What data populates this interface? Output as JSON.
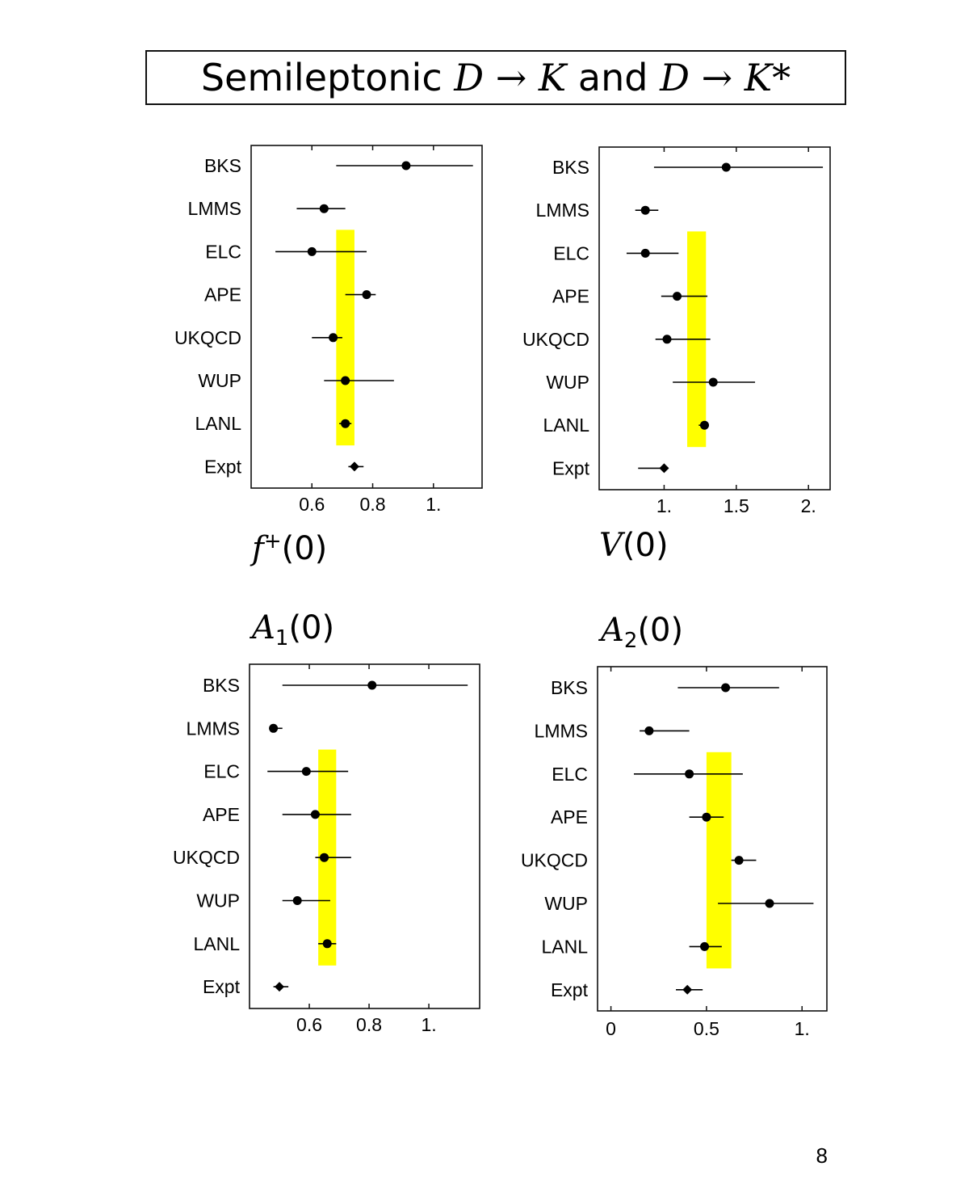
{
  "title": {
    "prefix": "Semileptonic",
    "process1": "D → K",
    "conj": "and",
    "process2": "D → K*"
  },
  "page_number": "8",
  "colors": {
    "band": "#ffff00",
    "point": "#000000",
    "frame": "#111111"
  },
  "chart_data": [
    {
      "type": "scatter",
      "panel": "f+(0)",
      "xlabel": "f+(0)",
      "xlim": [
        0.4,
        1.16
      ],
      "ticks": [
        0.6,
        0.8,
        1.0
      ],
      "tick_labels": [
        "0.6",
        "0.8",
        "1."
      ],
      "categories": [
        "BKS",
        "LMMS",
        "ELC",
        "APE",
        "UKQCD",
        "WUP",
        "LANL",
        "Expt"
      ],
      "values": [
        0.91,
        0.64,
        0.6,
        0.78,
        0.67,
        0.71,
        0.71,
        0.74
      ],
      "error_low": [
        0.68,
        0.55,
        0.48,
        0.71,
        0.6,
        0.64,
        0.69,
        0.72
      ],
      "error_high": [
        1.13,
        0.71,
        0.78,
        0.81,
        0.7,
        0.87,
        0.73,
        0.77
      ],
      "band": [
        0.68,
        0.74
      ]
    },
    {
      "type": "scatter",
      "panel": "V(0)",
      "xlabel": "V(0)",
      "xlim": [
        0.55,
        2.15
      ],
      "ticks": [
        1.0,
        1.5,
        2.0
      ],
      "tick_labels": [
        "1.",
        "1.5",
        "2."
      ],
      "categories": [
        "BKS",
        "LMMS",
        "ELC",
        "APE",
        "UKQCD",
        "WUP",
        "LANL",
        "Expt"
      ],
      "values": [
        1.43,
        0.87,
        0.87,
        1.09,
        1.02,
        1.34,
        1.28,
        1.0
      ],
      "error_low": [
        0.93,
        0.8,
        0.74,
        0.98,
        0.94,
        1.06,
        1.24,
        0.82
      ],
      "error_high": [
        2.1,
        0.96,
        1.1,
        1.3,
        1.32,
        1.63,
        1.31,
        1.03
      ],
      "band": [
        1.16,
        1.29
      ]
    },
    {
      "type": "scatter",
      "panel": "A1(0)",
      "xlabel": "A1(0)",
      "xlim": [
        0.4,
        1.17
      ],
      "ticks": [
        0.6,
        0.8,
        1.0
      ],
      "tick_labels": [
        "0.6",
        "0.8",
        "1."
      ],
      "categories": [
        "BKS",
        "LMMS",
        "ELC",
        "APE",
        "UKQCD",
        "WUP",
        "LANL",
        "Expt"
      ],
      "values": [
        0.81,
        0.48,
        0.59,
        0.62,
        0.65,
        0.56,
        0.66,
        0.5
      ],
      "error_low": [
        0.51,
        0.47,
        0.46,
        0.51,
        0.62,
        0.51,
        0.63,
        0.48
      ],
      "error_high": [
        1.13,
        0.51,
        0.73,
        0.74,
        0.74,
        0.67,
        0.69,
        0.53
      ],
      "band": [
        0.63,
        0.69
      ]
    },
    {
      "type": "scatter",
      "panel": "A2(0)",
      "xlabel": "A2(0)",
      "xlim": [
        -0.07,
        1.13
      ],
      "ticks": [
        0.0,
        0.5,
        1.0
      ],
      "tick_labels": [
        "0",
        "0.5",
        "1."
      ],
      "categories": [
        "BKS",
        "LMMS",
        "ELC",
        "APE",
        "UKQCD",
        "WUP",
        "LANL",
        "Expt"
      ],
      "values": [
        0.6,
        0.2,
        0.41,
        0.5,
        0.67,
        0.83,
        0.49,
        0.4
      ],
      "error_low": [
        0.35,
        0.15,
        0.12,
        0.41,
        0.63,
        0.56,
        0.41,
        0.34
      ],
      "error_high": [
        0.88,
        0.41,
        0.69,
        0.59,
        0.76,
        1.06,
        0.58,
        0.48
      ],
      "band": [
        0.5,
        0.63
      ]
    }
  ]
}
